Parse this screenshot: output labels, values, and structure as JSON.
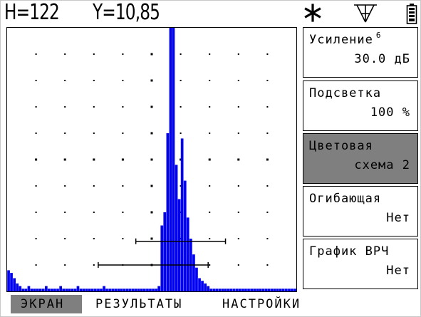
{
  "header": {
    "h_value": "H=122",
    "y_value": "Y=10,85",
    "icons": [
      "asterisk-icon",
      "probe-icon",
      "battery-icon"
    ]
  },
  "colors": {
    "signal": "#0000ff",
    "selected_bg": "#7f7f7f",
    "grid_dot": "#000000"
  },
  "menu": [
    {
      "label": "Усиление",
      "superscript": "6",
      "value": "30.0 дБ",
      "selected": false
    },
    {
      "label": "Подсветка",
      "value": "100 %",
      "selected": false
    },
    {
      "label": "Цветовая",
      "value": "схема 2",
      "selected": true
    },
    {
      "label": "Огибающая",
      "value": "Нет",
      "selected": false
    },
    {
      "label": "График ВРЧ",
      "value": "Нет",
      "selected": false
    }
  ],
  "tabs": [
    {
      "label": "ЭКРАН",
      "active": true
    },
    {
      "label": "РЕЗУЛЬТАТЫ",
      "active": false
    },
    {
      "label": "НАСТРОЙКИ",
      "active": false
    }
  ],
  "chart_data": {
    "type": "bar",
    "grid": "dots",
    "x": [
      0,
      1,
      2,
      3,
      4,
      5,
      6,
      7,
      8,
      9,
      10,
      11,
      12,
      13,
      14,
      15,
      16,
      17,
      18,
      19,
      20,
      21,
      22,
      23,
      24,
      25,
      26,
      27,
      28,
      29,
      30,
      31,
      32,
      33,
      34,
      35,
      36,
      37,
      38,
      39,
      40,
      41,
      42,
      43,
      44,
      45,
      46,
      47,
      48,
      49,
      50,
      51,
      52,
      53,
      54,
      55,
      56,
      57,
      58,
      59,
      60,
      61,
      62,
      63,
      64,
      65,
      66,
      67,
      68,
      69,
      70,
      71,
      72,
      73,
      74,
      75,
      76,
      77,
      78,
      79,
      80,
      81,
      82,
      83,
      84,
      85,
      86,
      87,
      88,
      89,
      90,
      91,
      92,
      93,
      94,
      95,
      96,
      97,
      98,
      99
    ],
    "values": [
      8,
      7,
      5,
      3,
      2,
      1,
      1,
      2,
      1,
      1,
      1,
      1,
      1,
      2,
      1,
      1,
      1,
      1,
      2,
      1,
      1,
      1,
      1,
      1,
      2,
      1,
      1,
      1,
      1,
      1,
      1,
      1,
      1,
      2,
      1,
      1,
      1,
      1,
      1,
      1,
      1,
      1,
      1,
      1,
      1,
      1,
      1,
      1,
      1,
      1,
      1,
      1,
      2,
      25,
      30,
      60,
      100,
      102,
      48,
      35,
      58,
      42,
      28,
      20,
      14,
      9,
      5,
      4,
      3,
      2,
      1,
      1,
      1,
      1,
      1,
      1,
      1,
      1,
      1,
      1,
      1,
      1,
      1,
      1,
      1,
      1,
      1,
      1,
      1,
      1,
      1,
      1,
      1,
      1,
      1,
      1,
      1,
      1,
      1,
      1
    ],
    "ylim": [
      0,
      100
    ],
    "gates": [
      {
        "start": 44,
        "end": 75,
        "level": 19
      },
      {
        "start": 31,
        "end": 69,
        "level": 10
      }
    ]
  }
}
